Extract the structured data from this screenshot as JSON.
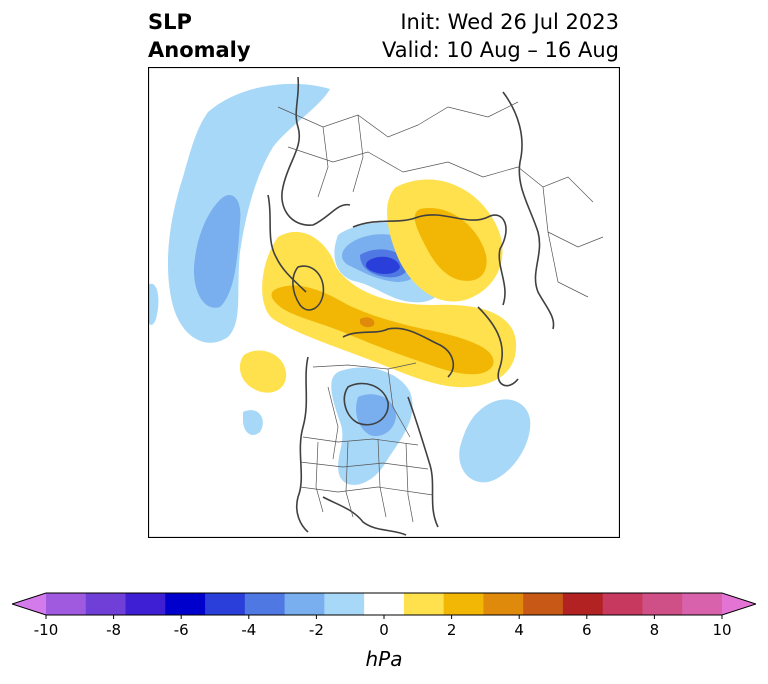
{
  "title": {
    "left_line1": "SLP",
    "left_line2": "Anomaly",
    "right_line1": "Init: Wed 26 Jul 2023",
    "right_line2": "Valid: 10 Aug – 16 Aug"
  },
  "colorbar": {
    "label": "hPa",
    "tick_labels": [
      "-10",
      "-8",
      "-6",
      "-4",
      "-2",
      "0",
      "2",
      "4",
      "6",
      "8",
      "10"
    ],
    "colors": [
      "#d37bea",
      "#a05ae0",
      "#6f3fd8",
      "#3f1fd3",
      "#0000cc",
      "#2a3fd9",
      "#4f78e3",
      "#79afee",
      "#a8d8f8",
      "#ffffff",
      "#ffe04d",
      "#f2b705",
      "#e08a0b",
      "#c85816",
      "#b22222",
      "#c7395f",
      "#cf4f87",
      "#d962ad",
      "#e474d3"
    ]
  },
  "palette": {
    "light_blue": "#a8d8f8",
    "mid_blue": "#79afee",
    "blue": "#4f78e3",
    "dark_blue": "#2a3fd9",
    "yellow": "#ffe04d",
    "gold": "#f2b705",
    "orange": "#e08a0b",
    "coast": "#404040"
  }
}
